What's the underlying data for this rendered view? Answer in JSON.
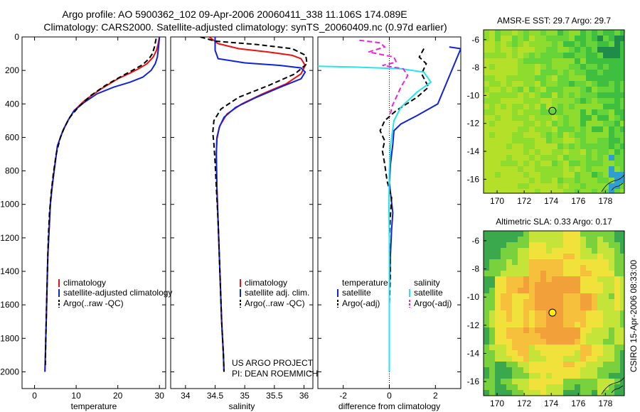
{
  "header": {
    "title_line1": "Argo profile: AO 5900362_102 09-Apr-2006 20060411_338 11.106S 174.089E",
    "title_line2": "Climatology: CARS2000. Satellite-adjusted climatology: synTS_20060409.nc (0.97d earlier)"
  },
  "colors": {
    "climatology": "#ee1111",
    "satellite": "#1122dd",
    "argo": "#000000",
    "sal_satellite": "#22e5ee",
    "sal_argo": "#ee22dd"
  },
  "chart_data": [
    {
      "id": "temperature",
      "type": "line",
      "xlabel": "temperature",
      "ylabel": "",
      "xlim": [
        -3,
        31.5
      ],
      "ylim": [
        2100,
        0
      ],
      "xticks": [
        0,
        10,
        20,
        30
      ],
      "yticks": [
        0,
        200,
        400,
        600,
        800,
        1000,
        1200,
        1400,
        1600,
        1800,
        2000
      ],
      "legend": [
        "climatology",
        "satellite-adjusted climatology",
        "Argo(..raw -QC)"
      ],
      "series": [
        {
          "name": "climatology",
          "style": "solid",
          "color_key": "climatology",
          "x": [
            30,
            29.7,
            29.3,
            28.5,
            27,
            25,
            23,
            20,
            16,
            12,
            9.5,
            8,
            6.8,
            5.5,
            4.7,
            4.2,
            3.8,
            3.5,
            3.2,
            3,
            2.8,
            2.6,
            2.5
          ],
          "y": [
            0,
            40,
            80,
            120,
            160,
            190,
            215,
            250,
            310,
            380,
            440,
            500,
            560,
            650,
            800,
            900,
            1000,
            1150,
            1300,
            1500,
            1700,
            1900,
            2000
          ]
        },
        {
          "name": "satellite-adjusted climatology",
          "style": "solid",
          "color_key": "satellite",
          "x": [
            30,
            29.8,
            29.5,
            29,
            28,
            26,
            23,
            19,
            15,
            12,
            9.5,
            8,
            6.8,
            5.5,
            4.7,
            4.2,
            3.8,
            3.5,
            3.2,
            3,
            2.8,
            2.6,
            2.5
          ],
          "y": [
            0,
            60,
            120,
            160,
            200,
            240,
            270,
            300,
            340,
            390,
            440,
            500,
            560,
            650,
            800,
            900,
            1000,
            1150,
            1300,
            1500,
            1700,
            1900,
            2000
          ]
        },
        {
          "name": "Argo(..raw -QC)",
          "style": "dash",
          "color_key": "argo",
          "x": [
            29.2,
            28.8,
            28.3,
            27.5,
            26,
            23.5,
            20.5,
            17,
            13.5,
            10.5,
            8.5,
            7.2,
            6.2,
            5.2,
            4.5,
            4,
            3.6,
            3.3,
            3.1,
            2.9,
            2.7,
            2.6
          ],
          "y": [
            10,
            60,
            100,
            130,
            165,
            200,
            240,
            290,
            350,
            420,
            480,
            540,
            600,
            700,
            820,
            930,
            1050,
            1200,
            1400,
            1600,
            1800,
            1960
          ]
        }
      ]
    },
    {
      "id": "salinity",
      "type": "line",
      "xlabel": "salinity",
      "ylabel": "",
      "xlim": [
        33.75,
        36.15
      ],
      "ylim": [
        2100,
        0
      ],
      "xticks": [
        34,
        34.5,
        35,
        35.5,
        36
      ],
      "legend": [
        "climatology",
        "satellite adj. clim.",
        "Argo(..raw -QC)"
      ],
      "annotation": [
        "US ARGO PROJECT",
        "PI: DEAN ROEMMICH"
      ],
      "series": [
        {
          "name": "climatology",
          "style": "solid",
          "color_key": "climatology",
          "x": [
            34.4,
            34.55,
            34.9,
            35.4,
            35.8,
            35.95,
            36.02,
            35.95,
            35.7,
            35.3,
            34.95,
            34.7,
            34.58,
            34.53,
            34.52,
            34.53,
            34.55,
            34.58,
            34.61,
            34.64,
            34.65
          ],
          "y": [
            0,
            40,
            70,
            90,
            110,
            130,
            170,
            220,
            280,
            340,
            400,
            460,
            530,
            600,
            700,
            900,
            1100,
            1400,
            1700,
            1900,
            2000
          ]
        },
        {
          "name": "satellite adj. clim.",
          "style": "solid",
          "color_key": "satellite",
          "x": [
            34.5,
            34.5,
            34.55,
            35,
            35.6,
            35.95,
            36.02,
            35.95,
            35.6,
            35.2,
            34.85,
            34.65,
            34.57,
            34.53,
            34.52,
            34.53,
            34.55,
            34.58,
            34.61,
            34.64,
            34.65
          ],
          "y": [
            0,
            80,
            130,
            155,
            170,
            185,
            210,
            250,
            300,
            360,
            420,
            480,
            540,
            610,
            700,
            900,
            1100,
            1400,
            1700,
            1900,
            2000
          ]
        },
        {
          "name": "Argo(..raw -QC)",
          "style": "dash",
          "color_key": "argo",
          "x": [
            34.25,
            34.5,
            35.2,
            35.8,
            36.03,
            36.05,
            35.85,
            35.4,
            34.9,
            34.6,
            34.48,
            34.46,
            34.48,
            34.5,
            34.52,
            34.55,
            34.58,
            34.61,
            34.64,
            34.65
          ],
          "y": [
            0,
            25,
            45,
            70,
            110,
            160,
            220,
            290,
            360,
            430,
            500,
            570,
            640,
            750,
            900,
            1100,
            1400,
            1700,
            1900,
            2000
          ]
        }
      ]
    },
    {
      "id": "difference",
      "type": "line",
      "xlabel": "difference from climatology",
      "ylabel": "",
      "xlim": [
        -3.1,
        3.1
      ],
      "ylim": [
        2100,
        0
      ],
      "xticks": [
        -2,
        0,
        2
      ],
      "legend_headers": [
        "temperature",
        "salinity"
      ],
      "legend": [
        "satellite",
        "Argo(-adj)",
        "satellite",
        "Argo(-adj)"
      ],
      "series": [
        {
          "name": "temperature satellite",
          "style": "solid",
          "color_key": "satellite",
          "x": [
            2.6,
            3.1,
            2.1,
            1.2,
            0.5,
            0.2,
            0.15,
            0.05,
            0,
            0.15,
            0.1,
            0.05,
            0,
            0,
            0,
            0
          ],
          "y": [
            60,
            70,
            400,
            470,
            520,
            560,
            640,
            760,
            870,
            1050,
            1150,
            1300,
            1500,
            1700,
            1900,
            2000
          ]
        },
        {
          "name": "temperature Argo(-adj)",
          "style": "dash",
          "color_key": "argo",
          "x": [
            1.5,
            1.3,
            1.6,
            1.4,
            1.7,
            1.2,
            0.3,
            -0.2,
            -0.4,
            -0.2,
            -0.3,
            -0.2,
            -0.1,
            0.1,
            0.05,
            0,
            0.05,
            0,
            0
          ],
          "y": [
            70,
            120,
            160,
            220,
            300,
            360,
            440,
            500,
            560,
            620,
            680,
            760,
            860,
            960,
            1060,
            1200,
            1400,
            1600,
            1800
          ]
        },
        {
          "name": "salinity satellite",
          "style": "solid",
          "color_key": "sal_satellite",
          "x": [
            -3.1,
            -1.5,
            0.5,
            1.5,
            1.8,
            1.2,
            0.5,
            0.2,
            0.05,
            0,
            -0.02,
            0,
            0,
            0,
            0
          ],
          "y": [
            175,
            180,
            190,
            210,
            270,
            330,
            420,
            500,
            650,
            800,
            1000,
            1200,
            1500,
            1800,
            2000
          ]
        },
        {
          "name": "salinity Argo(-adj)",
          "style": "dash",
          "color_key": "sal_argo",
          "x": [
            -1.3,
            -0.4,
            -0.2,
            -0.9,
            0.2,
            0.3,
            -0.3,
            0.6,
            0.8,
            0.5,
            0.3,
            0.1,
            0.05
          ],
          "y": [
            20,
            35,
            60,
            90,
            120,
            150,
            170,
            190,
            230,
            300,
            360,
            420,
            460
          ]
        }
      ]
    },
    {
      "id": "sst-map",
      "type": "heatmap",
      "title": "AMSR-E SST: 29.7 Argo: 29.7",
      "xlim": [
        169,
        179.4
      ],
      "ylim": [
        -17,
        -5.3
      ],
      "xticks": [
        170,
        172,
        174,
        176,
        178
      ],
      "yticks": [
        -6,
        -8,
        -10,
        -12,
        -14,
        -16
      ],
      "marker": {
        "lon": 174.089,
        "lat": -11.106
      }
    },
    {
      "id": "sla-map",
      "type": "heatmap",
      "title": "Altimetric SLA: 0.33 Argo: 0.17",
      "xlim": [
        169,
        179.4
      ],
      "ylim": [
        -17,
        -5.3
      ],
      "xticks": [
        170,
        172,
        174,
        176,
        178
      ],
      "yticks": [
        -6,
        -8,
        -10,
        -12,
        -14,
        -16
      ],
      "marker": {
        "lon": 174.089,
        "lat": -11.106
      }
    }
  ],
  "footer": {
    "credit": "CSIRO 15-Apr-2006 08:33:00"
  }
}
